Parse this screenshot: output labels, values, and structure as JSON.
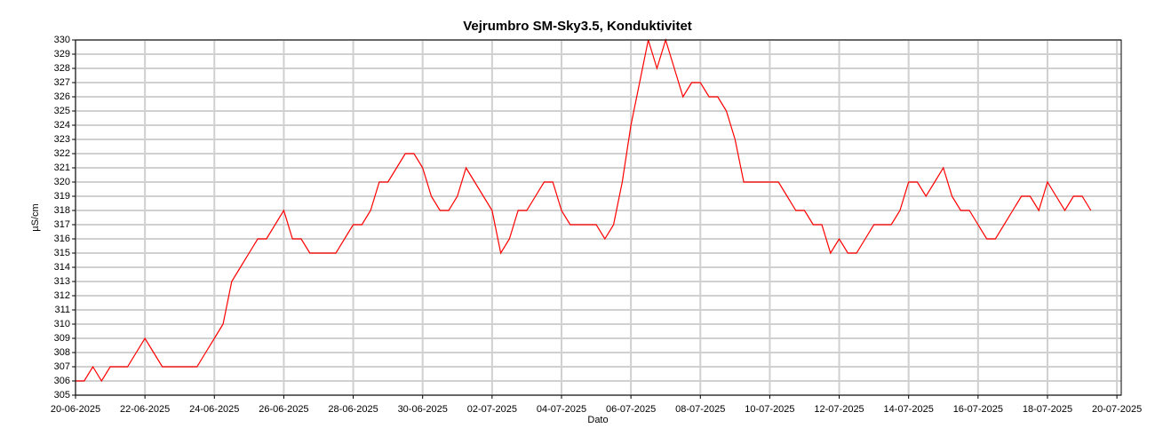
{
  "chart_data": {
    "type": "line",
    "title": "Vejrumbro SM-Sky3.5, Konduktivitet",
    "ylabel": "µS/cm",
    "xlabel": "Dato",
    "color": "#ff0000",
    "grid": true,
    "ylim": [
      305,
      330
    ],
    "yticks": [
      305,
      306,
      307,
      308,
      309,
      310,
      311,
      312,
      313,
      314,
      315,
      316,
      317,
      318,
      319,
      320,
      321,
      322,
      323,
      324,
      325,
      326,
      327,
      328,
      329,
      330
    ],
    "xlim": [
      "2025-06-20",
      "2025-07-20 03:00"
    ],
    "xticks": [
      {
        "value": "2025-06-20",
        "label": "20-06-2025"
      },
      {
        "value": "2025-06-22",
        "label": "22-06-2025"
      },
      {
        "value": "2025-06-24",
        "label": "24-06-2025"
      },
      {
        "value": "2025-06-26",
        "label": "26-06-2025"
      },
      {
        "value": "2025-06-28",
        "label": "28-06-2025"
      },
      {
        "value": "2025-06-30",
        "label": "30-06-2025"
      },
      {
        "value": "2025-07-02",
        "label": "02-07-2025"
      },
      {
        "value": "2025-07-04",
        "label": "04-07-2025"
      },
      {
        "value": "2025-07-06",
        "label": "06-07-2025"
      },
      {
        "value": "2025-07-08",
        "label": "08-07-2025"
      },
      {
        "value": "2025-07-10",
        "label": "10-07-2025"
      },
      {
        "value": "2025-07-12",
        "label": "12-07-2025"
      },
      {
        "value": "2025-07-14",
        "label": "14-07-2025"
      },
      {
        "value": "2025-07-16",
        "label": "16-07-2025"
      },
      {
        "value": "2025-07-18",
        "label": "18-07-2025"
      },
      {
        "value": "2025-07-20",
        "label": "20-07-2025"
      }
    ],
    "x": [
      "2025-06-20 00:00",
      "2025-06-20 06:00",
      "2025-06-20 12:00",
      "2025-06-20 18:00",
      "2025-06-21 00:00",
      "2025-06-21 06:00",
      "2025-06-21 12:00",
      "2025-06-21 18:00",
      "2025-06-22 00:00",
      "2025-06-22 06:00",
      "2025-06-22 12:00",
      "2025-06-22 18:00",
      "2025-06-23 00:00",
      "2025-06-23 06:00",
      "2025-06-23 12:00",
      "2025-06-23 18:00",
      "2025-06-24 00:00",
      "2025-06-24 06:00",
      "2025-06-24 12:00",
      "2025-06-24 18:00",
      "2025-06-25 00:00",
      "2025-06-25 06:00",
      "2025-06-25 12:00",
      "2025-06-25 18:00",
      "2025-06-26 00:00",
      "2025-06-26 06:00",
      "2025-06-26 12:00",
      "2025-06-26 18:00",
      "2025-06-27 00:00",
      "2025-06-27 06:00",
      "2025-06-27 12:00",
      "2025-06-27 18:00",
      "2025-06-28 00:00",
      "2025-06-28 06:00",
      "2025-06-28 12:00",
      "2025-06-28 18:00",
      "2025-06-29 00:00",
      "2025-06-29 06:00",
      "2025-06-29 12:00",
      "2025-06-29 18:00",
      "2025-06-30 00:00",
      "2025-06-30 06:00",
      "2025-06-30 12:00",
      "2025-06-30 18:00",
      "2025-07-01 00:00",
      "2025-07-01 06:00",
      "2025-07-01 12:00",
      "2025-07-01 18:00",
      "2025-07-02 00:00",
      "2025-07-02 06:00",
      "2025-07-02 12:00",
      "2025-07-02 18:00",
      "2025-07-03 00:00",
      "2025-07-03 06:00",
      "2025-07-03 12:00",
      "2025-07-03 18:00",
      "2025-07-04 00:00",
      "2025-07-04 06:00",
      "2025-07-04 12:00",
      "2025-07-04 18:00",
      "2025-07-05 00:00",
      "2025-07-05 06:00",
      "2025-07-05 12:00",
      "2025-07-05 18:00",
      "2025-07-06 00:00",
      "2025-07-06 06:00",
      "2025-07-06 12:00",
      "2025-07-06 18:00",
      "2025-07-07 00:00",
      "2025-07-07 06:00",
      "2025-07-07 12:00",
      "2025-07-07 18:00",
      "2025-07-08 00:00",
      "2025-07-08 06:00",
      "2025-07-08 12:00",
      "2025-07-08 18:00",
      "2025-07-09 00:00",
      "2025-07-09 06:00",
      "2025-07-09 12:00",
      "2025-07-09 18:00",
      "2025-07-10 00:00",
      "2025-07-10 06:00",
      "2025-07-10 12:00",
      "2025-07-10 18:00",
      "2025-07-11 00:00",
      "2025-07-11 06:00",
      "2025-07-11 12:00",
      "2025-07-11 18:00",
      "2025-07-12 00:00",
      "2025-07-12 06:00",
      "2025-07-12 12:00",
      "2025-07-12 18:00",
      "2025-07-13 00:00",
      "2025-07-13 06:00",
      "2025-07-13 12:00",
      "2025-07-13 18:00",
      "2025-07-14 00:00",
      "2025-07-14 06:00",
      "2025-07-14 12:00",
      "2025-07-14 18:00",
      "2025-07-15 00:00",
      "2025-07-15 06:00",
      "2025-07-15 12:00",
      "2025-07-15 18:00",
      "2025-07-16 00:00",
      "2025-07-16 06:00",
      "2025-07-16 12:00",
      "2025-07-16 18:00",
      "2025-07-17 00:00",
      "2025-07-17 06:00",
      "2025-07-17 12:00",
      "2025-07-17 18:00",
      "2025-07-18 00:00",
      "2025-07-18 06:00",
      "2025-07-18 12:00",
      "2025-07-18 18:00",
      "2025-07-19 00:00",
      "2025-07-19 06:00"
    ],
    "values": [
      306,
      306,
      307,
      306,
      307,
      307,
      307,
      308,
      309,
      308,
      307,
      307,
      307,
      307,
      307,
      308,
      309,
      310,
      313,
      314,
      315,
      316,
      316,
      317,
      318,
      316,
      316,
      315,
      315,
      315,
      315,
      316,
      317,
      317,
      318,
      320,
      320,
      321,
      322,
      322,
      321,
      319,
      318,
      318,
      319,
      321,
      320,
      319,
      318,
      315,
      316,
      318,
      318,
      319,
      320,
      320,
      318,
      317,
      317,
      317,
      317,
      316,
      317,
      320,
      324,
      327,
      330,
      328,
      330,
      328,
      326,
      327,
      327,
      326,
      326,
      325,
      323,
      320,
      320,
      320,
      320,
      320,
      319,
      318,
      318,
      317,
      317,
      315,
      316,
      315,
      315,
      316,
      317,
      317,
      317,
      318,
      320,
      320,
      319,
      320,
      321,
      319,
      318,
      318,
      317,
      316,
      316,
      317,
      318,
      319,
      319,
      318,
      320,
      319,
      318,
      319,
      319,
      318
    ]
  }
}
